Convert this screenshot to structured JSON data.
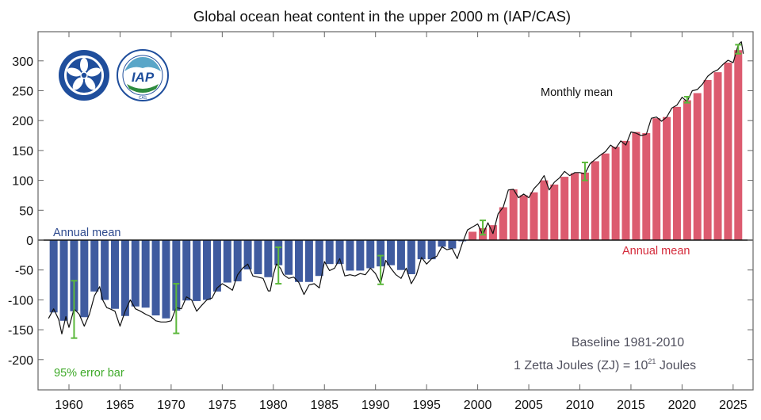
{
  "chart_data": {
    "type": "bar",
    "title": "Global ocean heat content in the upper 2000 m (IAP/CAS)",
    "xlabel": "",
    "ylabel": "",
    "xlim": [
      1957.2,
      2026.6
    ],
    "ylim": [
      -250,
      349
    ],
    "grid": false,
    "x_ticks": [
      "1960",
      "1965",
      "1970",
      "1975",
      "1980",
      "1985",
      "1990",
      "1995",
      "2000",
      "2005",
      "2010",
      "2015",
      "2020",
      "2025"
    ],
    "y_ticks": [
      "300",
      "250",
      "200",
      "150",
      "100",
      "50",
      "0",
      "-50",
      "-100",
      "-150",
      "-200"
    ],
    "annual_mean": {
      "years": [
        1958,
        1959,
        1960,
        1961,
        1962,
        1963,
        1964,
        1965,
        1966,
        1967,
        1968,
        1969,
        1970,
        1971,
        1972,
        1973,
        1974,
        1975,
        1976,
        1977,
        1978,
        1979,
        1980,
        1981,
        1982,
        1983,
        1984,
        1985,
        1986,
        1987,
        1988,
        1989,
        1990,
        1991,
        1992,
        1993,
        1994,
        1995,
        1996,
        1997,
        1998,
        1999,
        2000,
        2001,
        2002,
        2003,
        2004,
        2005,
        2006,
        2007,
        2008,
        2009,
        2010,
        2011,
        2012,
        2013,
        2014,
        2015,
        2016,
        2017,
        2018,
        2019,
        2020,
        2021,
        2022,
        2023,
        2024,
        2025
      ],
      "values": [
        -121,
        -135,
        -119,
        -129,
        -86,
        -100,
        -115,
        -127,
        -111,
        -113,
        -126,
        -131,
        -118,
        -101,
        -102,
        -100,
        -86,
        -71,
        -69,
        -49,
        -57,
        -62,
        -42,
        -58,
        -70,
        -70,
        -60,
        -40,
        -40,
        -51,
        -51,
        -47,
        -44,
        -42,
        -50,
        -57,
        -32,
        -32,
        -11,
        -14,
        -2,
        14,
        20,
        25,
        55,
        85,
        75,
        80,
        100,
        93,
        106,
        112,
        113,
        132,
        145,
        156,
        166,
        181,
        179,
        204,
        206,
        223,
        234,
        246,
        268,
        281,
        297,
        318
      ],
      "negative_color": "#3f5b9f",
      "positive_color": "#dc5b6f"
    },
    "monthly_mean": {
      "x": [
        1958.0,
        1958.5,
        1959.0,
        1959.3,
        1959.7,
        1960.0,
        1960.5,
        1961.0,
        1961.5,
        1962.0,
        1962.5,
        1963.0,
        1963.3,
        1963.7,
        1964.0,
        1964.5,
        1965.0,
        1965.5,
        1966.0,
        1966.5,
        1967.0,
        1967.5,
        1968.0,
        1968.5,
        1969.0,
        1969.5,
        1970.0,
        1970.5,
        1971.0,
        1971.5,
        1972.0,
        1972.5,
        1973.0,
        1973.5,
        1974.0,
        1974.5,
        1975.0,
        1975.5,
        1976.0,
        1976.5,
        1977.0,
        1977.5,
        1978.0,
        1978.5,
        1979.0,
        1979.5,
        1979.7,
        1980.0,
        1980.3,
        1980.7,
        1981.0,
        1981.5,
        1982.0,
        1982.5,
        1983.0,
        1983.5,
        1984.0,
        1984.5,
        1985.0,
        1985.5,
        1986.0,
        1986.5,
        1987.0,
        1987.5,
        1988.0,
        1988.5,
        1989.0,
        1989.5,
        1990.0,
        1990.5,
        1991.0,
        1991.5,
        1992.0,
        1992.5,
        1993.0,
        1993.5,
        1994.0,
        1994.5,
        1995.0,
        1995.5,
        1996.0,
        1996.5,
        1997.0,
        1997.5,
        1998.0,
        1998.5,
        1999.0,
        1999.5,
        2000.0,
        2000.5,
        2001.0,
        2001.5,
        2002.0,
        2002.5,
        2003.0,
        2003.5,
        2004.0,
        2004.5,
        2005.0,
        2005.5,
        2006.0,
        2006.5,
        2007.0,
        2007.5,
        2008.0,
        2008.5,
        2009.0,
        2009.5,
        2010.0,
        2010.5,
        2011.0,
        2011.5,
        2012.0,
        2012.5,
        2013.0,
        2013.5,
        2014.0,
        2014.5,
        2015.0,
        2015.5,
        2016.0,
        2016.5,
        2017.0,
        2017.5,
        2018.0,
        2018.5,
        2019.0,
        2019.5,
        2020.0,
        2020.5,
        2021.0,
        2021.5,
        2022.0,
        2022.5,
        2023.0,
        2023.5,
        2024.0,
        2024.5,
        2025.0,
        2025.5,
        2025.8,
        2026.0
      ],
      "y": [
        -131,
        -115,
        -133,
        -157,
        -128,
        -146,
        -115,
        -124,
        -144,
        -124,
        -93,
        -78,
        -100,
        -113,
        -115,
        -119,
        -144,
        -119,
        -100,
        -115,
        -119,
        -124,
        -128,
        -135,
        -137,
        -137,
        -135,
        -113,
        -115,
        -95,
        -100,
        -119,
        -109,
        -100,
        -97,
        -80,
        -73,
        -78,
        -84,
        -58,
        -47,
        -40,
        -60,
        -62,
        -64,
        -85,
        -85,
        -58,
        -40,
        -47,
        -58,
        -64,
        -62,
        -71,
        -91,
        -75,
        -73,
        -80,
        -36,
        -51,
        -47,
        -31,
        -60,
        -58,
        -60,
        -56,
        -58,
        -47,
        -56,
        -73,
        -34,
        -47,
        -58,
        -64,
        -47,
        -73,
        -58,
        -29,
        -40,
        -31,
        -27,
        -11,
        -16,
        -14,
        -31,
        -5,
        17,
        22,
        27,
        9,
        29,
        11,
        44,
        55,
        84,
        85,
        71,
        77,
        71,
        86,
        95,
        108,
        84,
        97,
        104,
        115,
        108,
        113,
        113,
        111,
        128,
        135,
        142,
        148,
        159,
        153,
        166,
        159,
        181,
        179,
        175,
        177,
        204,
        206,
        199,
        206,
        221,
        226,
        239,
        232,
        250,
        252,
        261,
        274,
        281,
        285,
        294,
        301,
        297,
        327,
        332,
        312
      ],
      "color": "#111111"
    },
    "error_bars": {
      "x": [
        1960.5,
        1970.5,
        1980.5,
        1990.5,
        2000.5,
        2010.5,
        2020.5,
        2025.5
      ],
      "upper": [
        -68,
        -73,
        -12,
        -26,
        33,
        130,
        240,
        327
      ],
      "lower": [
        -164,
        -156,
        -73,
        -74,
        9,
        100,
        230,
        312
      ],
      "color": "#5cb83c"
    },
    "annotations": {
      "annual_mean_negative": "Annual mean",
      "annual_mean_positive": "Annual mean",
      "monthly_mean": "Monthly mean",
      "error_bar_label": "95% error bar",
      "baseline": "Baseline 1981-2010",
      "unit_prefix": "1 Zetta Joules (ZJ) = 10",
      "unit_exponent": "21",
      "unit_suffix": " Joules"
    },
    "logos": {
      "cas": "CHINESE ACADEMY OF SCIENCES",
      "iap": "IAP",
      "iap_sub": "CAS"
    }
  }
}
